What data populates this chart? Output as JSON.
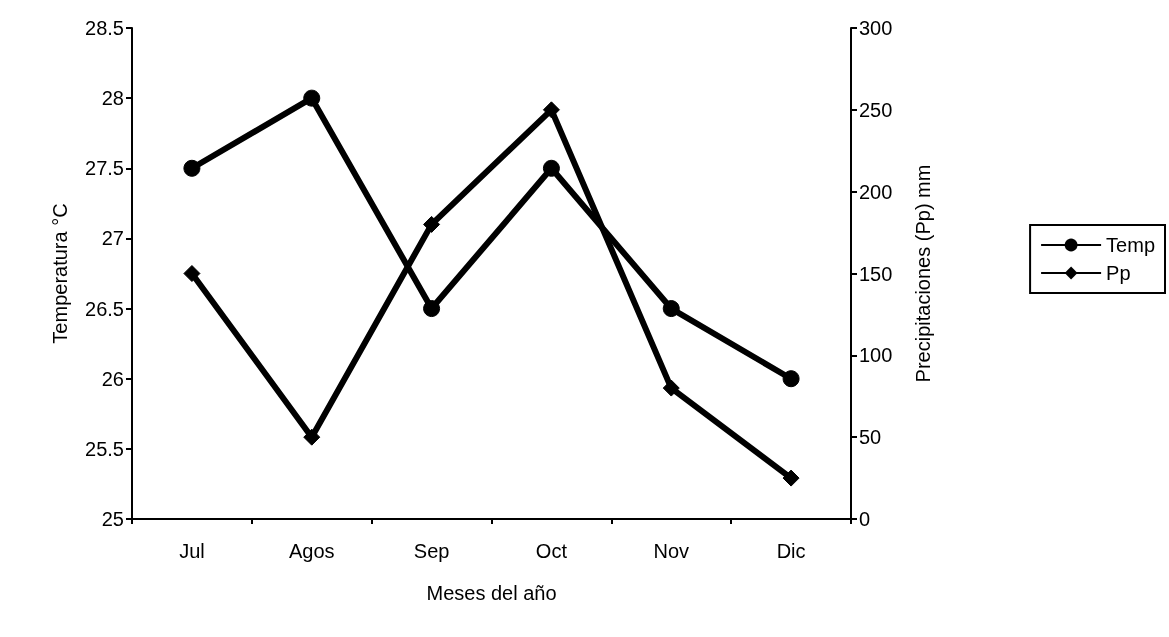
{
  "chart_data": {
    "type": "line",
    "xlabel": "Meses del año",
    "ylabel": "Temperatura °C",
    "y2label": "Precipitaciones (Pp) mm",
    "categories": [
      "Jul",
      "Agos",
      "Sep",
      "Oct",
      "Nov",
      "Dic"
    ],
    "series": [
      {
        "name": "Temp",
        "color": "#000000",
        "marker": "circle",
        "values": [
          27.5,
          28,
          26.5,
          27.5,
          26.5,
          26
        ]
      },
      {
        "name": "Pp",
        "color": "#000000",
        "marker": "diamond",
        "axis": "y2",
        "values": [
          150,
          50,
          180,
          250,
          80,
          25
        ]
      }
    ],
    "ylim": [
      25,
      28.5
    ],
    "yticks": [
      25,
      25.5,
      26,
      26.5,
      27,
      27.5,
      28,
      28.5
    ],
    "y2lim": [
      0,
      300
    ],
    "y2ticks": [
      0,
      50,
      100,
      150,
      200,
      250,
      300
    ],
    "grid": false,
    "legend": "right",
    "line_style": "solid"
  }
}
